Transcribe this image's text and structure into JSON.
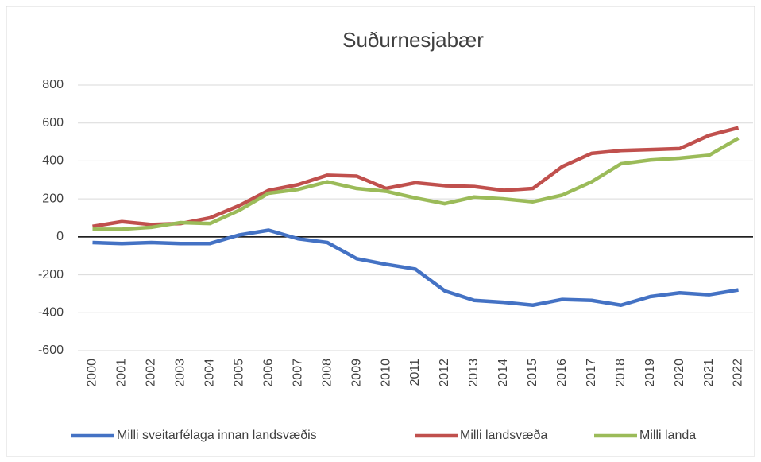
{
  "chart_data": {
    "type": "line",
    "title": "Suðurnesjabær",
    "categories": [
      "2000",
      "2001",
      "2002",
      "2003",
      "2004",
      "2005",
      "2006",
      "2007",
      "2008",
      "2009",
      "2010",
      "2011",
      "2012",
      "2013",
      "2014",
      "2015",
      "2016",
      "2017",
      "2018",
      "2019",
      "2020",
      "2021",
      "2022"
    ],
    "series": [
      {
        "name": "Milli sveitarfélaga innan landsvæðis",
        "color": "#4472c4",
        "values": [
          -30,
          -35,
          -30,
          -35,
          -35,
          10,
          35,
          -10,
          -30,
          -115,
          -145,
          -170,
          -285,
          -335,
          -345,
          -360,
          -330,
          -335,
          -360,
          -315,
          -295,
          -305,
          -280
        ]
      },
      {
        "name": "Milli landsvæða",
        "color": "#c0504d",
        "values": [
          55,
          80,
          65,
          70,
          100,
          165,
          245,
          275,
          325,
          320,
          255,
          285,
          270,
          265,
          245,
          255,
          370,
          440,
          455,
          460,
          465,
          535,
          575
        ]
      },
      {
        "name": "Milli landa",
        "color": "#9bbb59",
        "values": [
          40,
          40,
          50,
          75,
          70,
          140,
          230,
          250,
          290,
          255,
          240,
          205,
          175,
          210,
          200,
          185,
          220,
          290,
          385,
          405,
          415,
          430,
          520
        ]
      }
    ],
    "ylim": [
      -600,
      800
    ],
    "yticks": [
      -600,
      -400,
      -200,
      0,
      200,
      400,
      600,
      800
    ],
    "grid": true,
    "legend": "bottom"
  }
}
